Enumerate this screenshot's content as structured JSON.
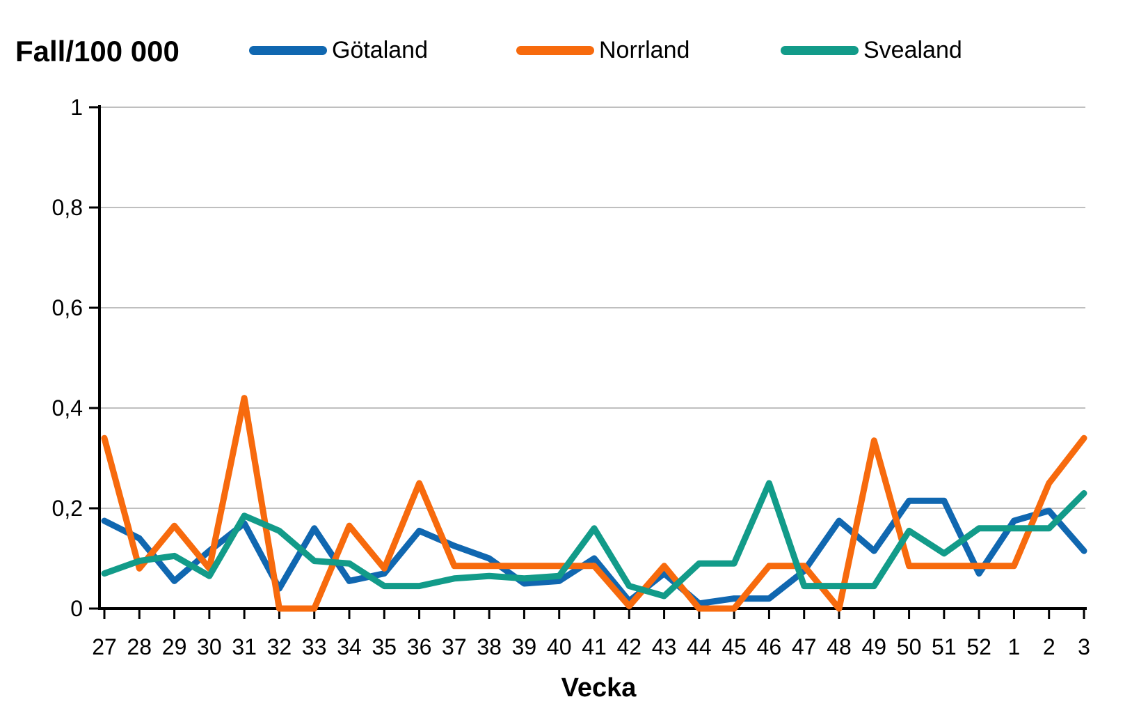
{
  "header": {
    "title": "Fall/100 000"
  },
  "legend": [
    {
      "label": "Götaland",
      "color": "#1067B0"
    },
    {
      "label": "Norrland",
      "color": "#F76A0D"
    },
    {
      "label": "Svealand",
      "color": "#129B89"
    }
  ],
  "axes": {
    "x_title": "Vecka",
    "grid_color": "#BFBFBF",
    "axis_color": "#000000"
  },
  "chart_data": {
    "type": "line",
    "title": "Fall/100 000",
    "xlabel": "Vecka",
    "ylabel": "Fall/100 000",
    "ylim": [
      0,
      1
    ],
    "grid": "horizontal",
    "legend_position": "top",
    "y_ticks": [
      {
        "value": 0,
        "label": "0"
      },
      {
        "value": 0.2,
        "label": "0,2"
      },
      {
        "value": 0.4,
        "label": "0,4"
      },
      {
        "value": 0.6,
        "label": "0,6"
      },
      {
        "value": 0.8,
        "label": "0,8"
      },
      {
        "value": 1,
        "label": "1"
      }
    ],
    "categories": [
      "27",
      "28",
      "29",
      "30",
      "31",
      "32",
      "33",
      "34",
      "35",
      "36",
      "37",
      "38",
      "39",
      "40",
      "41",
      "42",
      "43",
      "44",
      "45",
      "46",
      "47",
      "48",
      "49",
      "50",
      "51",
      "52",
      "1",
      "2",
      "3"
    ],
    "series": [
      {
        "name": "Götaland",
        "color": "#1067B0",
        "values": [
          0.175,
          0.14,
          0.055,
          0.115,
          0.17,
          0.04,
          0.16,
          0.055,
          0.07,
          0.155,
          0.125,
          0.1,
          0.05,
          0.055,
          0.1,
          0.015,
          0.07,
          0.01,
          0.02,
          0.02,
          0.075,
          0.175,
          0.115,
          0.215,
          0.215,
          0.07,
          0.175,
          0.195,
          0.115
        ]
      },
      {
        "name": "Norrland",
        "color": "#F76A0D",
        "values": [
          0.34,
          0.08,
          0.165,
          0.08,
          0.42,
          0,
          0,
          0.165,
          0.08,
          0.25,
          0.085,
          0.085,
          0.085,
          0.085,
          0.085,
          0.005,
          0.085,
          0,
          0,
          0.085,
          0.085,
          0,
          0.335,
          0.085,
          0.085,
          0.085,
          0.085,
          0.25,
          0.34
        ]
      },
      {
        "name": "Svealand",
        "color": "#129B89",
        "values": [
          0.07,
          0.095,
          0.105,
          0.065,
          0.185,
          0.155,
          0.095,
          0.09,
          0.045,
          0.045,
          0.06,
          0.065,
          0.06,
          0.065,
          0.16,
          0.045,
          0.025,
          0.09,
          0.09,
          0.25,
          0.045,
          0.045,
          0.045,
          0.155,
          0.11,
          0.16,
          0.16,
          0.16,
          0.23
        ]
      }
    ]
  }
}
